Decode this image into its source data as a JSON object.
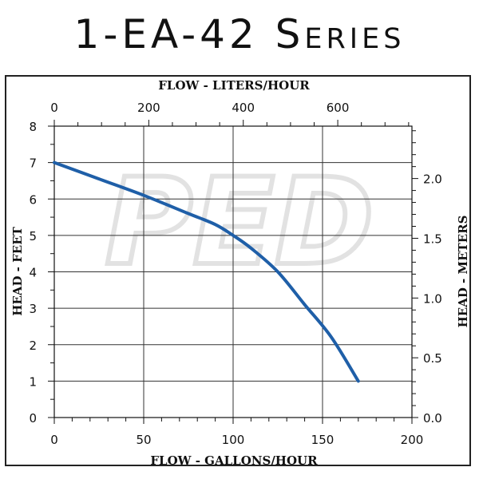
{
  "header": {
    "title": "1-EA-42 Series"
  },
  "chart_data": {
    "type": "line",
    "title": "1-EA-42 Series",
    "x_bottom": {
      "label": "FLOW - GALLONS/HOUR",
      "range": [
        0,
        200
      ],
      "ticks": [
        0,
        50,
        100,
        150,
        200
      ]
    },
    "x_top": {
      "label": "FLOW - LITERS/HOUR",
      "range": [
        0,
        757
      ],
      "ticks": [
        0,
        200,
        400,
        600
      ]
    },
    "y_left": {
      "label": "HEAD - FEET",
      "range": [
        0,
        8
      ],
      "ticks": [
        0,
        1,
        2,
        3,
        4,
        5,
        6,
        7,
        8
      ]
    },
    "y_right": {
      "label": "HEAD - METERS",
      "range": [
        0,
        2.4384
      ],
      "ticks": [
        "0.0",
        "0.5",
        "1.0",
        "1.5",
        "2.0"
      ]
    },
    "grid": true,
    "series": [
      {
        "color": "#1f5fa8",
        "x": [
          0,
          25,
          50,
          75,
          90,
          100,
          110,
          125,
          140,
          155,
          170
        ],
        "y": [
          7.0,
          6.55,
          6.1,
          5.6,
          5.3,
          5.0,
          4.65,
          4.0,
          3.1,
          2.2,
          1.0
        ]
      }
    ],
    "watermark": "PED"
  }
}
